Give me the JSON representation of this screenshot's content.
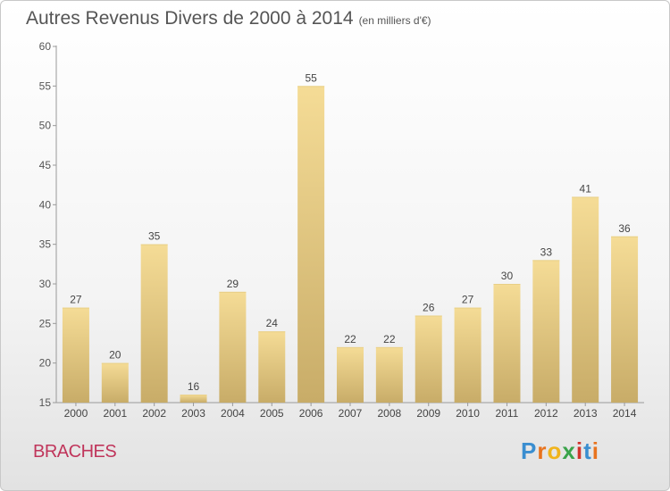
{
  "title": "Autres Revenus Divers de 2000 à 2014",
  "subtitle": "(en milliers d'€)",
  "commune": "BRACHES",
  "logo": {
    "letters": [
      "P",
      "r",
      "o",
      "x",
      "i",
      "t",
      "i"
    ],
    "colors": [
      "#3a8ed0",
      "#e8731e",
      "#f0b41c",
      "#3aa34a",
      "#d0342c",
      "#3a8ed0",
      "#e8731e"
    ]
  },
  "chart_data": {
    "type": "bar",
    "categories": [
      "2000",
      "2001",
      "2002",
      "2003",
      "2004",
      "2005",
      "2006",
      "2007",
      "2008",
      "2009",
      "2010",
      "2011",
      "2012",
      "2013",
      "2014"
    ],
    "values": [
      27,
      20,
      35,
      16,
      29,
      24,
      55,
      22,
      22,
      26,
      27,
      30,
      33,
      41,
      36
    ],
    "ylim": [
      15,
      60
    ],
    "yticks": [
      15,
      20,
      25,
      30,
      35,
      40,
      45,
      50,
      55,
      60
    ],
    "bar_color_top": "#f5dc96",
    "bar_color_bottom": "#c8ac68",
    "grid": false
  }
}
